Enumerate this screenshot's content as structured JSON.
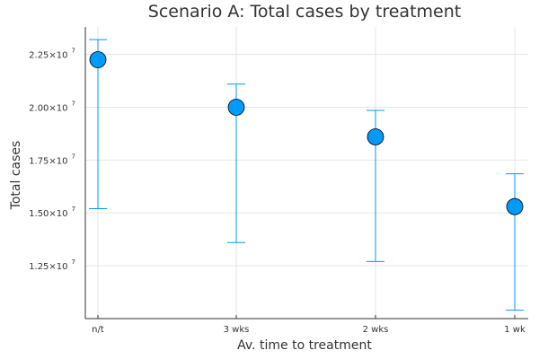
{
  "chart_data": {
    "type": "scatter",
    "title": "Scenario A: Total cases by treatment",
    "xlabel": "Av. time to treatment",
    "ylabel": "Total cases",
    "categories": [
      "n/t",
      "3 wks",
      "2 wks",
      "1 wk"
    ],
    "ylim": [
      10000000,
      23800000
    ],
    "yticks": [
      {
        "value": 12500000,
        "mantissa": "1.25",
        "base": "×10",
        "exp": "7"
      },
      {
        "value": 15000000,
        "mantissa": "1.50",
        "base": "×10",
        "exp": "7"
      },
      {
        "value": 17500000,
        "mantissa": "1.75",
        "base": "×10",
        "exp": "7"
      },
      {
        "value": 20000000,
        "mantissa": "2.00",
        "base": "×10",
        "exp": "7"
      },
      {
        "value": 22500000,
        "mantissa": "2.25",
        "base": "×10",
        "exp": "7"
      }
    ],
    "series": [
      {
        "name": "Total cases",
        "values": [
          22250000,
          20000000,
          18600000,
          15300000
        ],
        "lower": [
          15200000,
          13600000,
          12700000,
          10400000
        ],
        "upper": [
          23200000,
          21100000,
          19850000,
          16850000
        ],
        "marker_color": "#009af9",
        "errorbar_color": "#009af9"
      }
    ],
    "grid": true,
    "legend": "none"
  }
}
